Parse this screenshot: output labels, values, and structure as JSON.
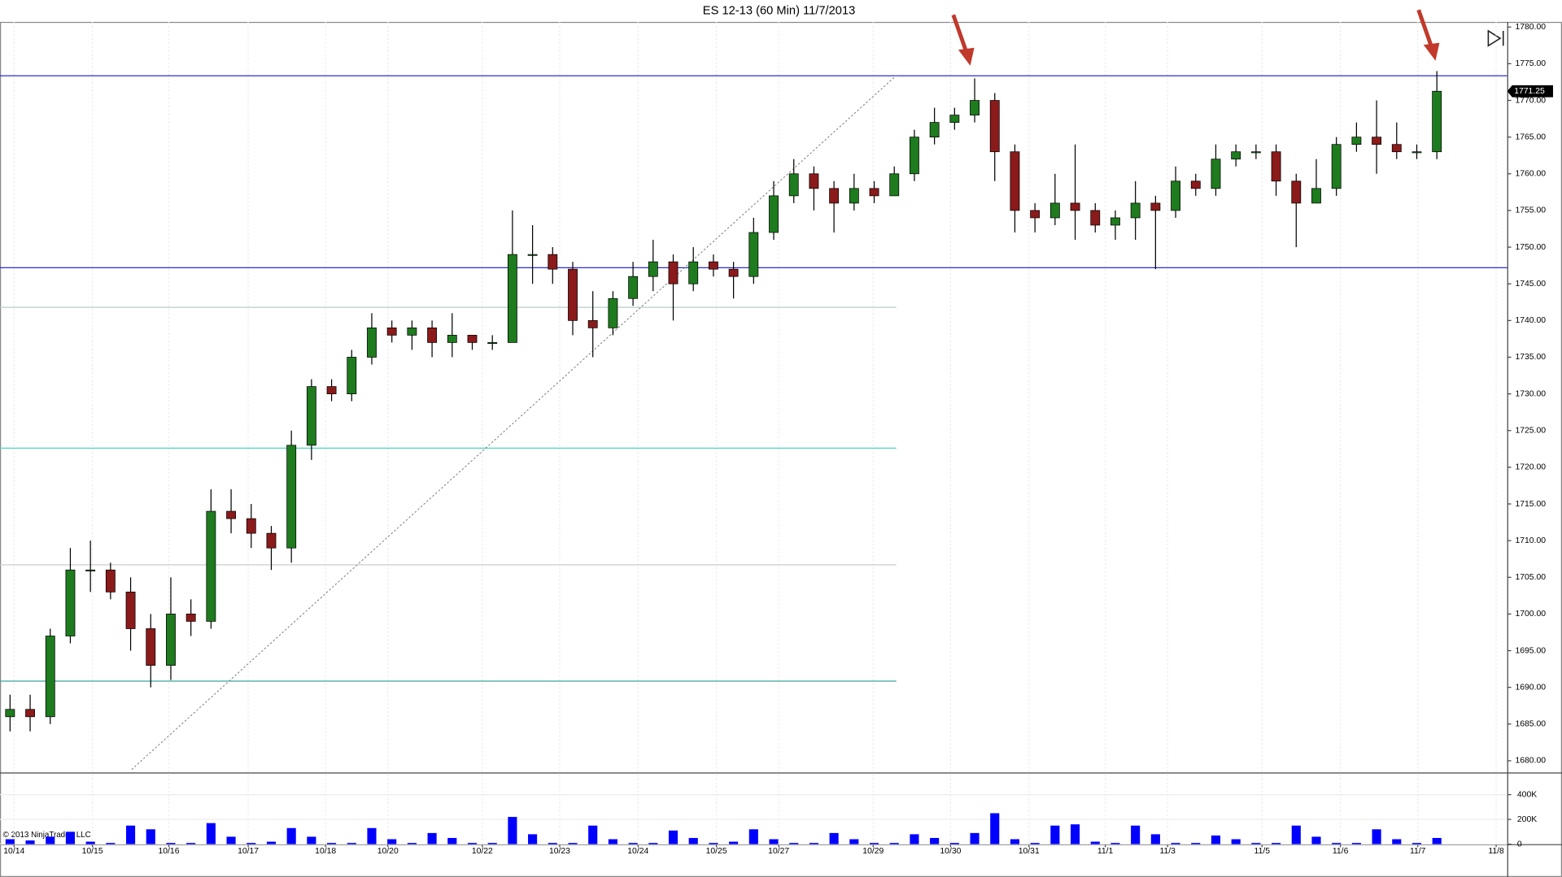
{
  "chart_data": {
    "type": "candlestick",
    "title": "ES 12-13 (60 Min)  11/7/2013",
    "copyright": "© 2013 NinjaTrader, LLC",
    "x": [
      1,
      3,
      5,
      7,
      9,
      11,
      13,
      15,
      17,
      19,
      21,
      23,
      25,
      27,
      29,
      31,
      33,
      35,
      37,
      39,
      41,
      43,
      45,
      47,
      49,
      51,
      53,
      55,
      57,
      59,
      61,
      63,
      65,
      67,
      69,
      71,
      73,
      75,
      77,
      79,
      81,
      83,
      85,
      87,
      89,
      91,
      93,
      95,
      97,
      99,
      101,
      103,
      105,
      107,
      109,
      111,
      113,
      115,
      117,
      119,
      121,
      123,
      125,
      127,
      129,
      131,
      133,
      135,
      137,
      139,
      141,
      143
    ],
    "open": [
      1686,
      1687,
      1686,
      1697,
      1706,
      1706,
      1703,
      1698,
      1693,
      1700,
      1699,
      1714,
      1713,
      1711,
      1709,
      1723,
      1731,
      1730,
      1735,
      1739,
      1738,
      1739,
      1737,
      1738,
      1737,
      1737,
      1749,
      1749,
      1747,
      1740,
      1739,
      1743,
      1746,
      1748,
      1745,
      1748,
      1747,
      1746,
      1752,
      1757,
      1760,
      1758,
      1756,
      1758,
      1757,
      1760,
      1765,
      1767,
      1768,
      1770,
      1763,
      1755,
      1754,
      1756,
      1755,
      1753,
      1754,
      1756,
      1755,
      1759,
      1758,
      1762,
      1763,
      1763,
      1759,
      1756,
      1758,
      1764,
      1765,
      1764,
      1763,
      1763
    ],
    "high": [
      1689,
      1689,
      1698,
      1709,
      1710,
      1707,
      1705,
      1700,
      1705,
      1702,
      1717,
      1717,
      1715,
      1712,
      1725,
      1732,
      1732,
      1736,
      1741,
      1740,
      1740,
      1740,
      1741,
      1738,
      1738,
      1755,
      1753,
      1750,
      1748,
      1744,
      1744,
      1748,
      1751,
      1749,
      1750,
      1749,
      1748,
      1754,
      1759,
      1762,
      1761,
      1759,
      1760,
      1759,
      1761,
      1766,
      1769,
      1769,
      1773,
      1771,
      1764,
      1756,
      1760,
      1764,
      1756,
      1755,
      1759,
      1757,
      1761,
      1760,
      1764,
      1764,
      1764,
      1764,
      1760,
      1762,
      1765,
      1767,
      1770,
      1767,
      1764,
      1774
    ],
    "low": [
      1684,
      1684,
      1685,
      1696,
      1703,
      1702,
      1695,
      1690,
      1691,
      1697,
      1698,
      1711,
      1709,
      1706,
      1707,
      1721,
      1729,
      1729,
      1734,
      1737,
      1736,
      1735,
      1735,
      1736,
      1736,
      1737,
      1745,
      1745,
      1738,
      1735,
      1738,
      1742,
      1744,
      1740,
      1744,
      1746,
      1743,
      1745,
      1751,
      1756,
      1755,
      1752,
      1755,
      1756,
      1757,
      1759,
      1764,
      1766,
      1767,
      1759,
      1752,
      1752,
      1753,
      1751,
      1752,
      1751,
      1751,
      1747,
      1754,
      1757,
      1757,
      1761,
      1762,
      1757,
      1750,
      1756,
      1757,
      1763,
      1760,
      1762,
      1762,
      1762
    ],
    "close": [
      1687,
      1686,
      1697,
      1706,
      1706,
      1703,
      1698,
      1693,
      1700,
      1699,
      1714,
      1713,
      1711,
      1709,
      1723,
      1731,
      1730,
      1735,
      1739,
      1738,
      1739,
      1737,
      1738,
      1737,
      1737,
      1749,
      1749,
      1747,
      1740,
      1739,
      1743,
      1746,
      1748,
      1745,
      1748,
      1747,
      1746,
      1752,
      1757,
      1760,
      1758,
      1756,
      1758,
      1757,
      1760,
      1765,
      1767,
      1768,
      1770,
      1763,
      1755,
      1754,
      1756,
      1755,
      1753,
      1754,
      1756,
      1755,
      1759,
      1758,
      1762,
      1763,
      1763,
      1759,
      1756,
      1758,
      1764,
      1765,
      1764,
      1763,
      1763,
      1771.25
    ],
    "up_color": "#1e7b1e",
    "down_color": "#8b1a1a",
    "xlim": [
      0,
      150
    ],
    "xticks": [
      {
        "value": 1.4,
        "label": "10/14"
      },
      {
        "value": 9.2,
        "label": "10/15"
      },
      {
        "value": 16.8,
        "label": "10/16"
      },
      {
        "value": 24.7,
        "label": "10/17"
      },
      {
        "value": 32.4,
        "label": "10/18"
      },
      {
        "value": 38.6,
        "label": "10/20"
      },
      {
        "value": 48.0,
        "label": "10/22"
      },
      {
        "value": 55.7,
        "label": "10/23"
      },
      {
        "value": 63.5,
        "label": "10/24"
      },
      {
        "value": 71.3,
        "label": "10/25"
      },
      {
        "value": 77.5,
        "label": "10/27"
      },
      {
        "value": 86.9,
        "label": "10/29"
      },
      {
        "value": 94.6,
        "label": "10/30"
      },
      {
        "value": 102.4,
        "label": "10/31"
      },
      {
        "value": 110.0,
        "label": "11/1"
      },
      {
        "value": 116.2,
        "label": "11/3"
      },
      {
        "value": 125.6,
        "label": "11/5"
      },
      {
        "value": 133.4,
        "label": "11/6"
      },
      {
        "value": 141.1,
        "label": "11/7"
      },
      {
        "value": 148.9,
        "label": "11/8"
      }
    ],
    "ylim": [
      1678.4,
      1780.7
    ],
    "yticks": [
      {
        "value": 1680,
        "label": "1680.00"
      },
      {
        "value": 1685,
        "label": "1685.00"
      },
      {
        "value": 1690,
        "label": "1690.00"
      },
      {
        "value": 1695,
        "label": "1695.00"
      },
      {
        "value": 1700,
        "label": "1700.00"
      },
      {
        "value": 1705,
        "label": "1705.00"
      },
      {
        "value": 1710,
        "label": "1710.00"
      },
      {
        "value": 1715,
        "label": "1715.00"
      },
      {
        "value": 1720,
        "label": "1720.00"
      },
      {
        "value": 1725,
        "label": "1725.00"
      },
      {
        "value": 1730,
        "label": "1730.00"
      },
      {
        "value": 1735,
        "label": "1735.00"
      },
      {
        "value": 1740,
        "label": "1740.00"
      },
      {
        "value": 1745,
        "label": "1745.00"
      },
      {
        "value": 1750,
        "label": "1750.00"
      },
      {
        "value": 1755,
        "label": "1755.00"
      },
      {
        "value": 1760,
        "label": "1760.00"
      },
      {
        "value": 1765,
        "label": "1765.00"
      },
      {
        "value": 1770,
        "label": "1770.00"
      },
      {
        "value": 1775,
        "label": "1775.00"
      },
      {
        "value": 1780,
        "label": "1780.00"
      }
    ],
    "grid": true,
    "levels": [
      {
        "value": 1773.35,
        "color": "#2b2bd6",
        "x_end": 150
      },
      {
        "value": 1747.2,
        "color": "#2b2bd6",
        "x_end": 150
      },
      {
        "value": 1741.8,
        "color": "#b8ccc8",
        "x_end": 89.2
      },
      {
        "value": 1722.6,
        "color": "#4fd6c0",
        "x_end": 89.2
      },
      {
        "value": 1706.7,
        "color": "#c8c8c8",
        "x_end": 89.2
      },
      {
        "value": 1690.85,
        "color": "#3aa89a",
        "x_end": 89.2
      }
    ],
    "trendline": {
      "x": [
        13.1,
        89.2
      ],
      "y": [
        1678.8,
        1773.4
      ],
      "color": "#777777"
    },
    "volume": {
      "color": "#0000ff",
      "values": [
        40000,
        30000,
        60000,
        100000,
        20000,
        10000,
        150000,
        120000,
        10000,
        10000,
        170000,
        60000,
        10000,
        20000,
        130000,
        60000,
        10000,
        10000,
        130000,
        40000,
        10000,
        90000,
        50000,
        10000,
        10000,
        220000,
        80000,
        10000,
        10000,
        150000,
        40000,
        10000,
        10000,
        110000,
        50000,
        10000,
        20000,
        120000,
        40000,
        10000,
        10000,
        90000,
        40000,
        10000,
        10000,
        80000,
        50000,
        10000,
        90000,
        250000,
        40000,
        10000,
        150000,
        160000,
        20000,
        10000,
        150000,
        80000,
        10000,
        10000,
        70000,
        40000,
        10000,
        10000,
        150000,
        60000,
        10000,
        10000,
        120000,
        40000,
        10000,
        50000
      ],
      "ylim": [
        0,
        563000
      ],
      "yticks": [
        0,
        {
          "value": 200000,
          "label": "200K"
        },
        {
          "value": 400000,
          "label": "400K"
        }
      ]
    }
  }
}
